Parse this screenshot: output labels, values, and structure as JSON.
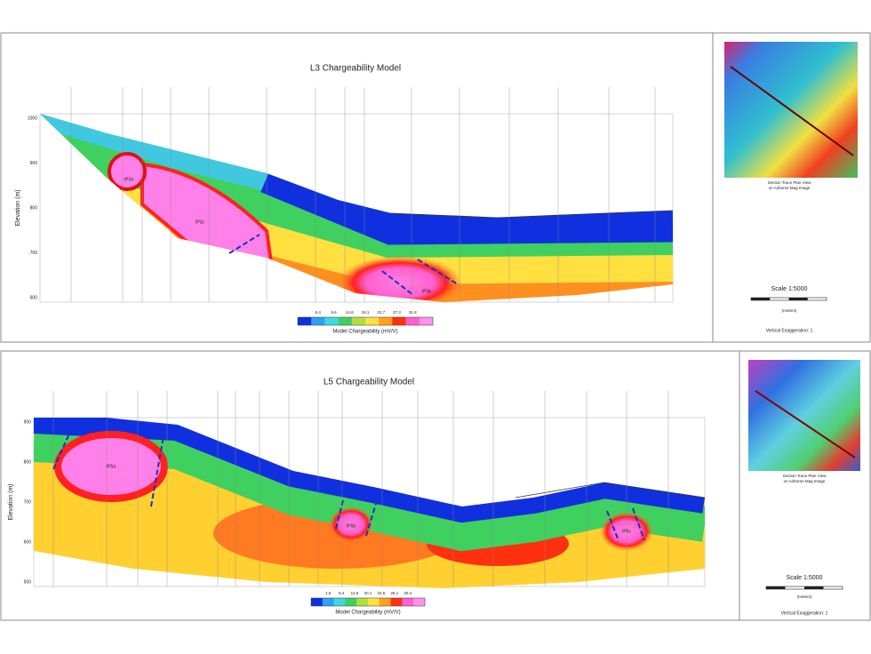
{
  "panels": [
    {
      "title": "L3 Chargeability Model",
      "y_axis_label": "Elevation (m)",
      "y_ticks": [
        "1000",
        "900",
        "800",
        "700",
        "600"
      ],
      "anomalies": [
        "IP3a",
        "IP3c",
        "IP3b"
      ],
      "colorbar": {
        "label": "Model Chargeability (mV/V)",
        "ticks": [
          "6.4",
          "9.6",
          "14.6",
          "19.1",
          "22.7",
          "27.3",
          "31.8"
        ]
      },
      "inset": {
        "caption": [
          "Section Trace Plan View",
          "on Airborne Mag Image"
        ],
        "scale": "Scale 1:5000",
        "units": "(meters)",
        "exaggeration": "Vertical Exaggeration: 1"
      }
    },
    {
      "title": "L5 Chargeability Model",
      "y_axis_label": "Elevation (m)",
      "y_ticks": [
        "900",
        "800",
        "700",
        "600",
        "500"
      ],
      "anomalies": [
        "IP5a",
        "IP5b",
        "IP5c"
      ],
      "colorbar": {
        "label": "Model Chargeability (mV/V)",
        "ticks": [
          "1.6",
          "6.4",
          "14.6",
          "20.1",
          "22.5",
          "26.1",
          "30.4"
        ]
      },
      "inset": {
        "caption": [
          "Section Trace Plan View",
          "on Airborne Mag Image"
        ],
        "scale": "Scale 1:5000",
        "units": "(meters)",
        "exaggeration": "Vertical Exaggeration: 1"
      }
    }
  ]
}
